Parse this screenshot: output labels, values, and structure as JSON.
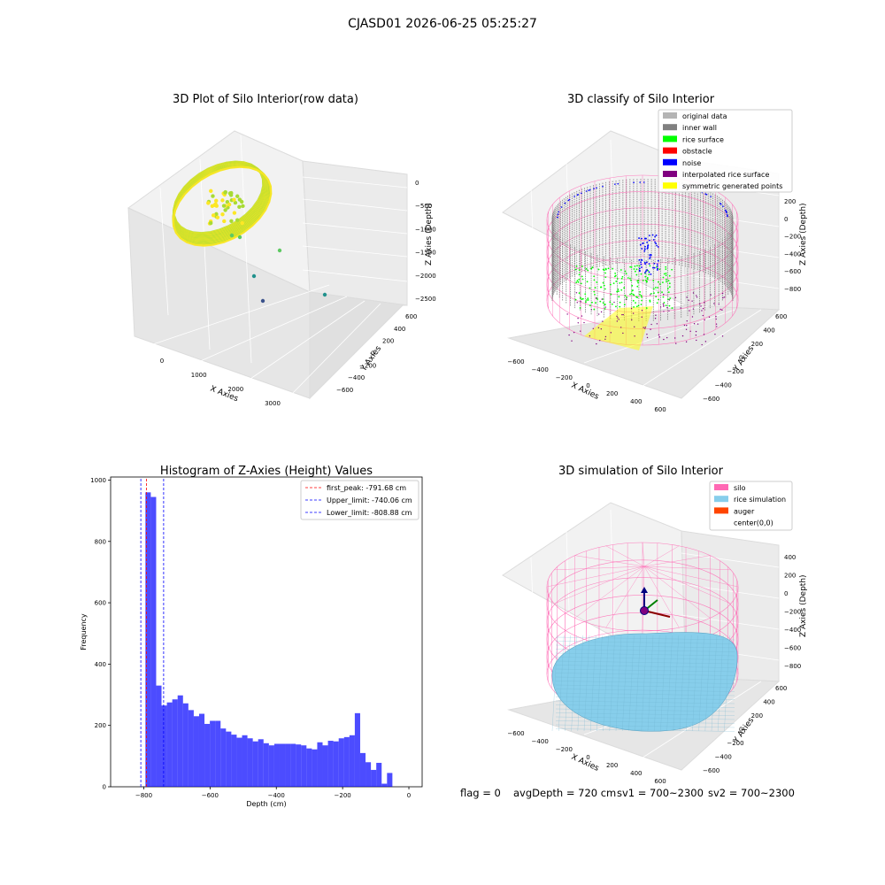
{
  "figure": {
    "suptitle": "CJASD01 2026-06-25 05:25:27"
  },
  "chart_data": [
    {
      "type": "scatter3d",
      "title": "3D Plot of Silo Interior(row data)",
      "xlabel": "X Axies",
      "ylabel": "Y Axies",
      "zlabel": "Z Axies (Depth)",
      "x_ticks": [
        "0",
        "1000",
        "2000",
        "3000"
      ],
      "y_ticks": [
        "600",
        "400",
        "200",
        "0",
        "−200",
        "−400",
        "−600"
      ],
      "z_ticks": [
        "0",
        "−500",
        "−1000",
        "−1500",
        "−2000",
        "−2500"
      ],
      "colormap": "viridis"
    },
    {
      "type": "scatter3d",
      "title": "3D classify of Silo Interior",
      "xlabel": "X Axies",
      "ylabel": "Y Axies",
      "zlabel": "Z Axies (Depth)",
      "x_ticks": [
        "−600",
        "−400",
        "−200",
        "0",
        "200",
        "400",
        "600"
      ],
      "y_ticks": [
        "600",
        "400",
        "200",
        "0",
        "−200",
        "−400",
        "−600"
      ],
      "z_ticks": [
        "200",
        "0",
        "−200",
        "−400",
        "−600",
        "−800"
      ],
      "legend": [
        {
          "label": "original data",
          "color": "#b4b4b4"
        },
        {
          "label": "inner wall",
          "color": "#808080"
        },
        {
          "label": "rice surface",
          "color": "#00ff00"
        },
        {
          "label": "obstacle",
          "color": "#ff0000"
        },
        {
          "label": "noise",
          "color": "#0000ff"
        },
        {
          "label": "interpolated rice surface",
          "color": "#800080"
        },
        {
          "label": "symmetric generated points",
          "color": "#ffff00"
        }
      ],
      "legend_position": "top-right"
    },
    {
      "type": "bar",
      "title": "Histogram of Z-Axies (Height) Values",
      "xlabel": "Depth (cm)",
      "ylabel": "Frequency",
      "xlim": [
        -900,
        40
      ],
      "ylim": [
        0,
        1010
      ],
      "x_ticks": [
        -800,
        -600,
        -400,
        -200,
        0
      ],
      "x_tick_labels": [
        "−800",
        "−600",
        "−400",
        "−200",
        "0"
      ],
      "y_ticks": [
        0,
        200,
        400,
        600,
        800,
        1000
      ],
      "bar_color": "#0000ff",
      "bin_start": -795,
      "bin_width": 16.2,
      "values": [
        960,
        945,
        330,
        265,
        275,
        285,
        298,
        272,
        250,
        230,
        238,
        205,
        215,
        215,
        190,
        180,
        170,
        160,
        168,
        158,
        148,
        155,
        142,
        135,
        140,
        140,
        140,
        140,
        138,
        135,
        125,
        122,
        145,
        135,
        150,
        148,
        158,
        162,
        168,
        240,
        110,
        80,
        55,
        78,
        10,
        45
      ],
      "lines": [
        {
          "label": "first_peak: -791.68 cm",
          "x": -791.68,
          "color": "#ff0000"
        },
        {
          "label": "Upper_limit: -740.06 cm",
          "x": -740.06,
          "color": "#0000ff"
        },
        {
          "label": "Lower_limit: -808.88 cm",
          "x": -808.88,
          "color": "#0000ff"
        }
      ],
      "legend_position": "top-right"
    },
    {
      "type": "surface3d",
      "title": "3D simulation of Silo Interior",
      "xlabel": "X Axies",
      "ylabel": "Y Axies",
      "zlabel": "Z Axies (Depth)",
      "x_ticks": [
        "−600",
        "−400",
        "−200",
        "0",
        "200",
        "400",
        "600"
      ],
      "y_ticks": [
        "600",
        "400",
        "200",
        "0",
        "−200",
        "−400",
        "−600"
      ],
      "z_ticks": [
        "400",
        "200",
        "0",
        "−200",
        "−400",
        "−600",
        "−800"
      ],
      "legend": [
        {
          "label": "silo",
          "color": "#ff69b4"
        },
        {
          "label": "rice simulation",
          "color": "#87ceeb"
        },
        {
          "label": "auger",
          "color": "#ff4500"
        },
        {
          "label": "center(0,0)",
          "color": "#ffffff"
        }
      ],
      "legend_position": "top-right"
    }
  ],
  "status": {
    "flag": "flag = 0",
    "avg": "avgDepth = 720 cm",
    "sv1": "sv1 = 700~2300",
    "sv2": "sv2 = 700~2300"
  }
}
